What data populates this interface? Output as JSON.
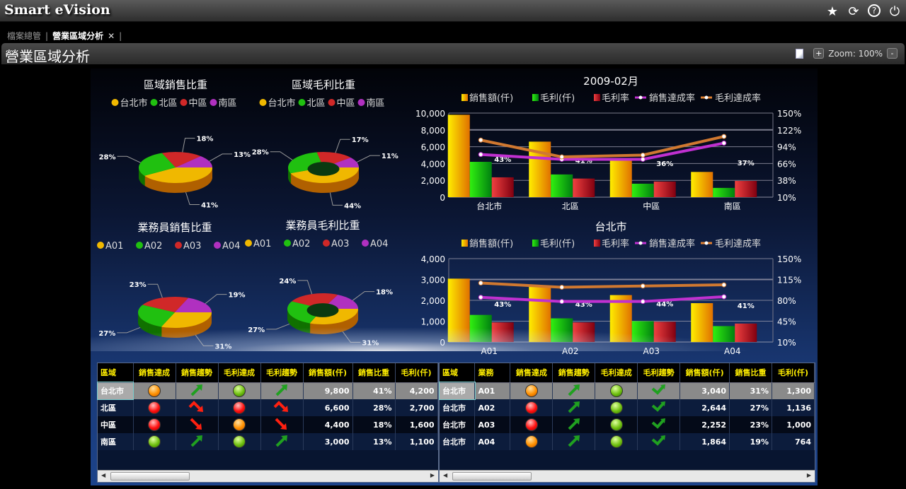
{
  "app": {
    "title": "Smart eVision",
    "icons": [
      "star-icon",
      "refresh-icon",
      "help-icon",
      "power-icon"
    ]
  },
  "tabs": [
    {
      "label": "檔案總管",
      "active": false
    },
    {
      "label": "營業區域分析",
      "active": true
    }
  ],
  "tab_close": "✕",
  "page": {
    "title": "營業區域分析",
    "zoom_label": "Zoom: 100%",
    "zoom_in": "+",
    "zoom_out": "-"
  },
  "colors": {
    "sales": "#f0c000",
    "profit": "#20c010",
    "margin": "#d02020",
    "sales_rate": "#c030d0",
    "profit_rate": "#e08030",
    "south": "#b030c0"
  },
  "chart_data": [
    {
      "type": "pie",
      "title": "區域銷售比重",
      "categories": [
        "台北市",
        "北區",
        "中區",
        "南區"
      ],
      "values": [
        41,
        28,
        18,
        13
      ],
      "donut": false
    },
    {
      "type": "pie",
      "title": "區域毛利比重",
      "categories": [
        "台北市",
        "北區",
        "中區",
        "南區"
      ],
      "values": [
        44,
        28,
        17,
        11
      ],
      "donut": true
    },
    {
      "type": "pie",
      "title": "業務員銷售比重",
      "categories": [
        "A01",
        "A02",
        "A03",
        "A04"
      ],
      "values": [
        31,
        27,
        23,
        19
      ],
      "donut": false
    },
    {
      "type": "pie",
      "title": "業務員毛利比重",
      "categories": [
        "A01",
        "A02",
        "A03",
        "A04"
      ],
      "values": [
        31,
        27,
        24,
        18
      ],
      "donut": true
    },
    {
      "type": "bar",
      "title": "2009-02月",
      "categories": [
        "台北市",
        "北區",
        "中區",
        "南區"
      ],
      "left_axis": {
        "ylim": [
          0,
          10000
        ],
        "ticks": [
          "0",
          "2,000",
          "4,000",
          "6,000",
          "8,000",
          "10,000"
        ]
      },
      "right_axis": {
        "ylim": [
          10,
          150
        ],
        "ticks": [
          "10%",
          "38%",
          "66%",
          "94%",
          "122%",
          "150%"
        ]
      },
      "series": [
        {
          "name": "銷售額(仟)",
          "kind": "bar",
          "axis": "left",
          "values": [
            9800,
            6600,
            4400,
            3000
          ]
        },
        {
          "name": "毛利(仟)",
          "kind": "bar",
          "axis": "left",
          "values": [
            4200,
            2700,
            1600,
            1100
          ]
        },
        {
          "name": "毛利率",
          "kind": "bar",
          "axis": "right",
          "values": [
            43,
            41,
            36,
            37
          ],
          "labels": [
            "43%",
            "41%",
            "36%",
            "37%"
          ]
        },
        {
          "name": "銷售達成率",
          "kind": "line",
          "axis": "right",
          "values": [
            81,
            73,
            73,
            100
          ]
        },
        {
          "name": "毛利達成率",
          "kind": "line",
          "axis": "right",
          "values": [
            105,
            77,
            80,
            111
          ]
        }
      ],
      "grid": true,
      "legend": "top"
    },
    {
      "type": "bar",
      "title": "台北市",
      "categories": [
        "A01",
        "A02",
        "A03",
        "A04"
      ],
      "left_axis": {
        "ylim": [
          0,
          4000
        ],
        "ticks": [
          "0",
          "1,000",
          "2,000",
          "3,000",
          "4,000"
        ]
      },
      "right_axis": {
        "ylim": [
          10,
          150
        ],
        "ticks": [
          "10%",
          "45%",
          "80%",
          "115%",
          "150%"
        ]
      },
      "series": [
        {
          "name": "銷售額(仟)",
          "kind": "bar",
          "axis": "left",
          "values": [
            3040,
            2644,
            2252,
            1864
          ]
        },
        {
          "name": "毛利(仟)",
          "kind": "bar",
          "axis": "left",
          "values": [
            1300,
            1136,
            1000,
            764
          ]
        },
        {
          "name": "毛利率",
          "kind": "bar",
          "axis": "right",
          "values": [
            43,
            43,
            44,
            41
          ],
          "labels": [
            "43%",
            "43%",
            "44%",
            "41%"
          ]
        },
        {
          "name": "銷售達成率",
          "kind": "line",
          "axis": "right",
          "values": [
            85,
            78,
            78,
            86
          ]
        },
        {
          "name": "毛利達成率",
          "kind": "line",
          "axis": "right",
          "values": [
            109,
            102,
            104,
            106
          ]
        }
      ],
      "grid": true,
      "legend": "top"
    }
  ],
  "table_left": {
    "headers": [
      "區域",
      "銷售達成",
      "銷售趨勢",
      "毛利達成",
      "毛利趨勢",
      "銷售額(仟)",
      "銷售比重",
      "毛利(仟)"
    ],
    "rows": [
      {
        "region": "台北市",
        "sales_light": "orange",
        "sales_trend": "up",
        "profit_light": "green",
        "profit_trend": "up",
        "sales": "9,800",
        "share": "41%",
        "profit": "4,200"
      },
      {
        "region": "北區",
        "sales_light": "red",
        "sales_trend": "peak-down",
        "profit_light": "red",
        "profit_trend": "peak-down",
        "sales": "6,600",
        "share": "28%",
        "profit": "2,700"
      },
      {
        "region": "中區",
        "sales_light": "red",
        "sales_trend": "down",
        "profit_light": "orange",
        "profit_trend": "down",
        "sales": "4,400",
        "share": "18%",
        "profit": "1,600"
      },
      {
        "region": "南區",
        "sales_light": "green",
        "sales_trend": "up",
        "profit_light": "green",
        "profit_trend": "up",
        "sales": "3,000",
        "share": "13%",
        "profit": "1,100"
      }
    ]
  },
  "table_right": {
    "headers": [
      "區域",
      "業務",
      "銷售達成",
      "銷售趨勢",
      "毛利達成",
      "毛利趨勢",
      "銷售額(仟)",
      "銷售比重",
      "毛利(仟)"
    ],
    "rows": [
      {
        "region": "台北市",
        "rep": "A01",
        "sales_light": "orange",
        "sales_trend": "up",
        "profit_light": "green",
        "profit_trend": "check-up",
        "sales": "3,040",
        "share": "31%",
        "profit": "1,300"
      },
      {
        "region": "台北市",
        "rep": "A02",
        "sales_light": "red",
        "sales_trend": "up",
        "profit_light": "green",
        "profit_trend": "check-up",
        "sales": "2,644",
        "share": "27%",
        "profit": "1,136"
      },
      {
        "region": "台北市",
        "rep": "A03",
        "sales_light": "red",
        "sales_trend": "up",
        "profit_light": "green",
        "profit_trend": "check-up",
        "sales": "2,252",
        "share": "23%",
        "profit": "1,000"
      },
      {
        "region": "台北市",
        "rep": "A04",
        "sales_light": "orange",
        "sales_trend": "up",
        "profit_light": "green",
        "profit_trend": "check-up",
        "sales": "1,864",
        "share": "19%",
        "profit": "764"
      }
    ]
  }
}
